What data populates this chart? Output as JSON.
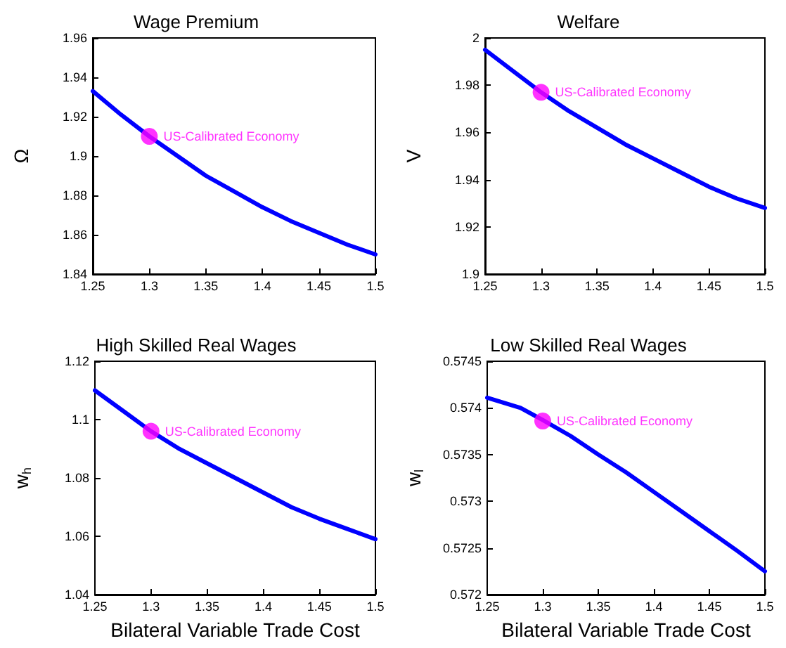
{
  "chart_data": [
    {
      "type": "line",
      "title": "Wage Premium",
      "ylabel": "Ω",
      "xlim": [
        1.25,
        1.5
      ],
      "xticks": [
        1.25,
        1.3,
        1.35,
        1.4,
        1.45,
        1.5
      ],
      "ylim": [
        1.84,
        1.96
      ],
      "yticks": [
        1.84,
        1.86,
        1.88,
        1.9,
        1.92,
        1.94,
        1.96
      ],
      "grid": false,
      "series": [
        {
          "color": "#0000ff",
          "x": [
            1.25,
            1.275,
            1.3,
            1.325,
            1.35,
            1.375,
            1.4,
            1.425,
            1.45,
            1.475,
            1.5
          ],
          "values": [
            1.933,
            1.921,
            1.91,
            1.9,
            1.89,
            1.882,
            1.874,
            1.867,
            1.861,
            1.855,
            1.85
          ]
        },
        {
          "name": "US-Calibrated Economy",
          "type": "scatter",
          "marker": "circle",
          "color": "#ff00ff",
          "x": [
            1.3
          ],
          "values": [
            1.91
          ]
        }
      ]
    },
    {
      "type": "line",
      "title": "Welfare",
      "ylabel": "V",
      "xlim": [
        1.25,
        1.5
      ],
      "xticks": [
        1.25,
        1.3,
        1.35,
        1.4,
        1.45,
        1.5
      ],
      "ylim": [
        1.9,
        2
      ],
      "yticks": [
        1.9,
        1.92,
        1.94,
        1.96,
        1.98,
        2
      ],
      "grid": false,
      "series": [
        {
          "color": "#0000ff",
          "x": [
            1.25,
            1.275,
            1.3,
            1.325,
            1.35,
            1.375,
            1.4,
            1.425,
            1.45,
            1.475,
            1.5
          ],
          "values": [
            1.995,
            1.986,
            1.977,
            1.969,
            1.962,
            1.955,
            1.949,
            1.943,
            1.937,
            1.932,
            1.928
          ]
        },
        {
          "name": "US-Calibrated Economy",
          "type": "scatter",
          "marker": "circle",
          "color": "#ff00ff",
          "x": [
            1.3
          ],
          "values": [
            1.977
          ]
        }
      ]
    },
    {
      "type": "line",
      "title": "High Skilled Real Wages",
      "xlabel": "Bilateral Variable Trade Cost",
      "ylabel": "w$_{h}$",
      "xlim": [
        1.25,
        1.5
      ],
      "xticks": [
        1.25,
        1.3,
        1.35,
        1.4,
        1.45,
        1.5
      ],
      "ylim": [
        1.04,
        1.12
      ],
      "yticks": [
        1.04,
        1.06,
        1.08,
        1.1,
        1.12
      ],
      "grid": false,
      "series": [
        {
          "color": "#0000ff",
          "x": [
            1.25,
            1.275,
            1.3,
            1.325,
            1.35,
            1.375,
            1.4,
            1.425,
            1.45,
            1.475,
            1.5
          ],
          "values": [
            1.11,
            1.103,
            1.096,
            1.09,
            1.085,
            1.08,
            1.075,
            1.07,
            1.066,
            1.0625,
            1.059
          ]
        },
        {
          "name": "US-Calibrated Economy",
          "type": "scatter",
          "marker": "circle",
          "color": "#ff00ff",
          "x": [
            1.3
          ],
          "values": [
            1.096
          ]
        }
      ]
    },
    {
      "type": "line",
      "title": "Low Skilled Real Wages",
      "xlabel": "Bilateral Variable Trade Cost",
      "ylabel": "w$_{l}$",
      "xlim": [
        1.25,
        1.5
      ],
      "xticks": [
        1.25,
        1.3,
        1.35,
        1.4,
        1.45,
        1.5
      ],
      "ylim": [
        0.572,
        0.5745
      ],
      "yticks": [
        0.572,
        0.5725,
        0.573,
        0.5735,
        0.574,
        0.5745
      ],
      "grid": false,
      "series": [
        {
          "color": "#0000ff",
          "x": [
            1.25,
            1.28,
            1.3,
            1.325,
            1.35,
            1.375,
            1.4,
            1.425,
            1.45,
            1.475,
            1.5
          ],
          "values": [
            0.57411,
            0.574,
            0.57387,
            0.5737,
            0.5735,
            0.57331,
            0.5731,
            0.57289,
            0.57268,
            0.57247,
            0.57225
          ]
        },
        {
          "name": "US-Calibrated Economy",
          "type": "scatter",
          "marker": "circle",
          "color": "#ff00ff",
          "x": [
            1.3
          ],
          "values": [
            0.57386
          ]
        }
      ]
    }
  ]
}
